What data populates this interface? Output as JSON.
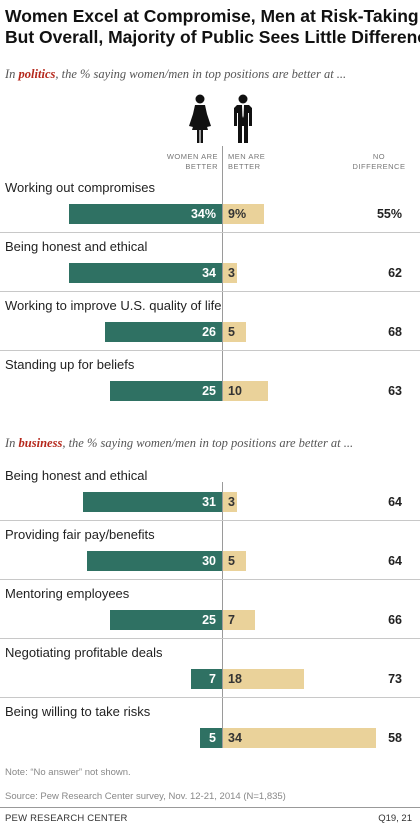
{
  "title_line1": "Women Excel at Compromise, Men at Risk-Taking;",
  "title_line2": "But Overall, Majority of Public Sees Little Difference",
  "politics_intro": {
    "pre": "In ",
    "keyword": "politics",
    "post": ", the % saying women/men in top positions are better at ..."
  },
  "business_intro": {
    "pre": "In ",
    "keyword": "business",
    "post": ", the % saying women/men in top positions are better at ..."
  },
  "column_headers": {
    "women": [
      "WOMEN ARE",
      "BETTER"
    ],
    "men": [
      "MEN ARE",
      "BETTER"
    ],
    "no_diff": [
      "NO",
      "DIFFERENCE"
    ]
  },
  "icons": [
    "woman-icon",
    "man-icon"
  ],
  "colors": {
    "women": "#2f7163",
    "men": "#ead29a",
    "accent": "#b5271b"
  },
  "chart_data": {
    "type": "bar",
    "orientation": "horizontal-diverging",
    "series": [
      {
        "name": "Women are better",
        "color": "#2f7163"
      },
      {
        "name": "Men are better",
        "color": "#ead29a"
      },
      {
        "name": "No difference"
      }
    ],
    "groups": [
      {
        "name": "politics",
        "rows": [
          {
            "label": "Working out compromises",
            "women": 34,
            "men": 9,
            "no_difference": 55,
            "women_text": "34%",
            "men_text": "9%",
            "nd_text": "55%"
          },
          {
            "label": "Being honest and ethical",
            "women": 34,
            "men": 3,
            "no_difference": 62,
            "women_text": "34",
            "men_text": "3",
            "nd_text": "62"
          },
          {
            "label": "Working to improve U.S. quality of life",
            "women": 26,
            "men": 5,
            "no_difference": 68,
            "women_text": "26",
            "men_text": "5",
            "nd_text": "68"
          },
          {
            "label": "Standing up for beliefs",
            "women": 25,
            "men": 10,
            "no_difference": 63,
            "women_text": "25",
            "men_text": "10",
            "nd_text": "63"
          }
        ]
      },
      {
        "name": "business",
        "rows": [
          {
            "label": "Being honest and ethical",
            "women": 31,
            "men": 3,
            "no_difference": 64,
            "women_text": "31",
            "men_text": "3",
            "nd_text": "64"
          },
          {
            "label": "Providing fair pay/benefits",
            "women": 30,
            "men": 5,
            "no_difference": 64,
            "women_text": "30",
            "men_text": "5",
            "nd_text": "64"
          },
          {
            "label": "Mentoring employees",
            "women": 25,
            "men": 7,
            "no_difference": 66,
            "women_text": "25",
            "men_text": "7",
            "nd_text": "66"
          },
          {
            "label": "Negotiating profitable deals",
            "women": 7,
            "men": 18,
            "no_difference": 73,
            "women_text": "7",
            "men_text": "18",
            "nd_text": "73"
          },
          {
            "label": "Being willing to take risks",
            "women": 5,
            "men": 34,
            "no_difference": 58,
            "women_text": "5",
            "men_text": "34",
            "nd_text": "58"
          }
        ]
      }
    ]
  },
  "note": "Note: “No answer” not shown.",
  "source": "Source: Pew Research Center survey, Nov. 12-21, 2014 (N=1,835)",
  "footer_org": "PEW RESEARCH CENTER",
  "footer_ref": "Q19, 21"
}
